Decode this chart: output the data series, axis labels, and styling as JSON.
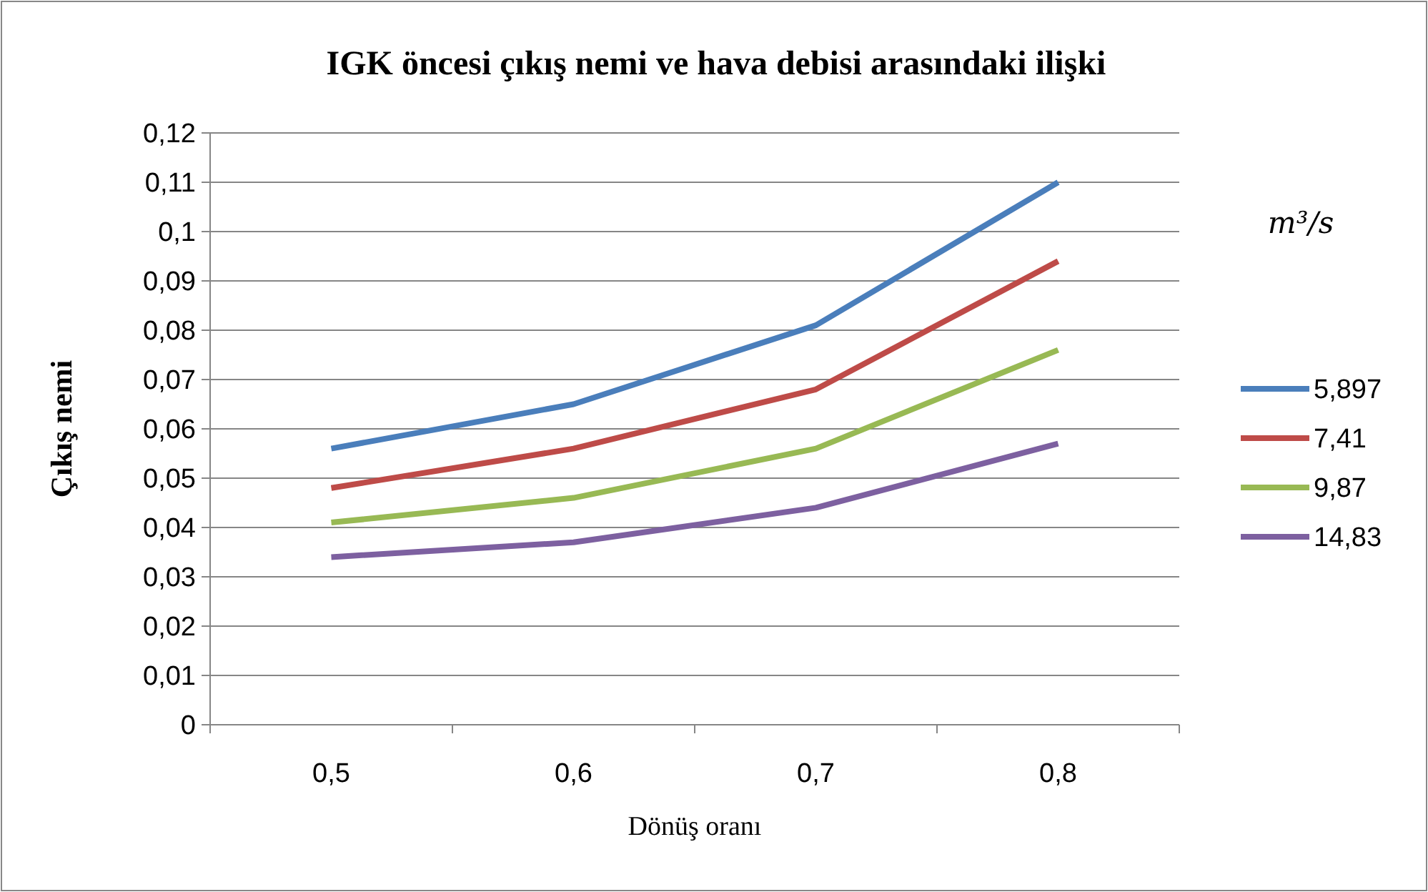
{
  "chart_data": {
    "type": "line",
    "title": "IGK öncesi çıkış nemi ve hava debisi arasındaki ilişki",
    "xlabel": "Dönüş oranı",
    "ylabel": "Çıkış nemi",
    "legend_title": "m³/s",
    "categories": [
      "0,5",
      "0,6",
      "0,7",
      "0,8"
    ],
    "series": [
      {
        "name": "5,897",
        "color": "#4a7ebb",
        "values": [
          0.056,
          0.065,
          0.081,
          0.11
        ]
      },
      {
        "name": "7,41",
        "color": "#be4b48",
        "values": [
          0.048,
          0.056,
          0.068,
          0.094
        ]
      },
      {
        "name": "9,87",
        "color": "#98b954",
        "values": [
          0.041,
          0.046,
          0.056,
          0.076
        ]
      },
      {
        "name": "14,83",
        "color": "#7d60a0",
        "values": [
          0.034,
          0.037,
          0.044,
          0.057
        ]
      }
    ],
    "ylim": [
      0,
      0.12
    ],
    "yticks": [
      0,
      {
        "value": 0.01,
        "label": "0,01"
      },
      {
        "value": 0.02,
        "label": "0,02"
      },
      {
        "value": 0.03,
        "label": "0,03"
      },
      {
        "value": 0.04,
        "label": "0,04"
      },
      {
        "value": 0.05,
        "label": "0,05"
      },
      {
        "value": 0.06,
        "label": "0,06"
      },
      {
        "value": 0.07,
        "label": "0,07"
      },
      {
        "value": 0.08,
        "label": "0,08"
      },
      {
        "value": 0.09,
        "label": "0,09"
      },
      {
        "value": 0.1,
        "label": "0,1"
      },
      {
        "value": 0.11,
        "label": "0,11"
      },
      {
        "value": 0.12,
        "label": "0,12"
      }
    ],
    "grid": "y",
    "legend": "right",
    "marker": "none",
    "line_style": "solid"
  }
}
